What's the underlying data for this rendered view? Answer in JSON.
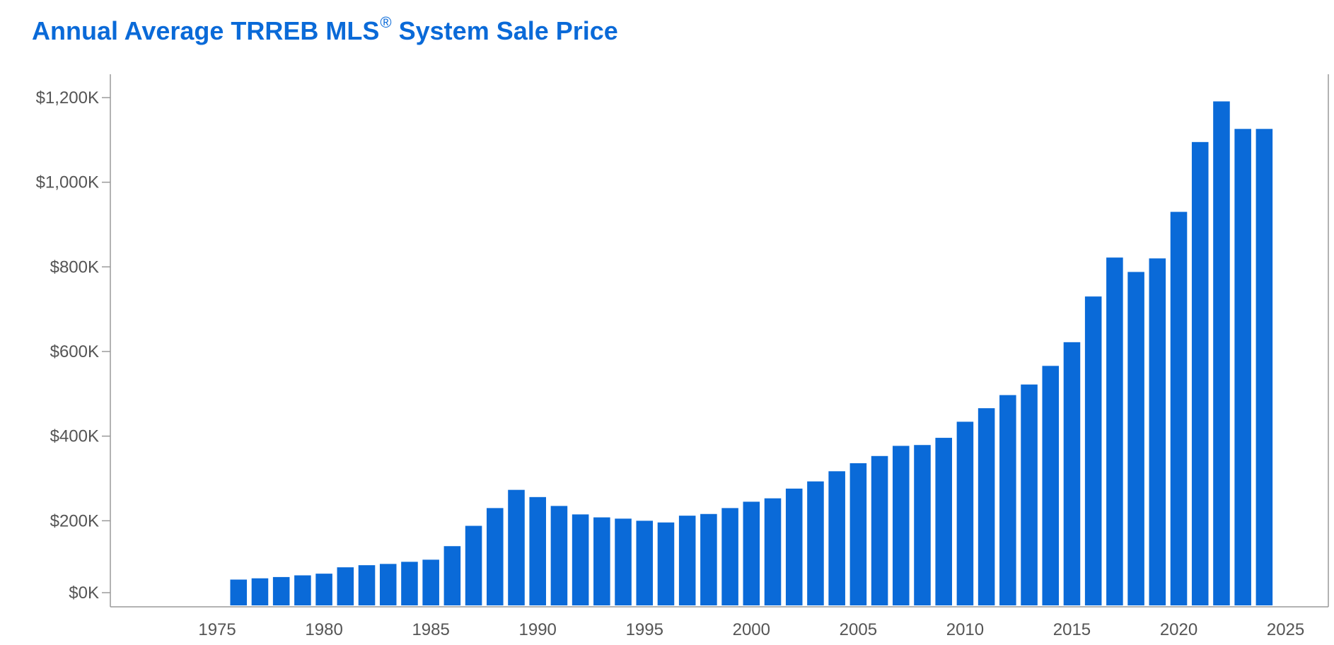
{
  "title": {
    "main": "Annual Average TRREB MLS",
    "sup": "®",
    "rest": " System Sale Price"
  },
  "colors": {
    "bar": "#0a6ad8",
    "title": "#0a6ad8",
    "axis": "#9a9a9a",
    "label": "#555555"
  },
  "chart_data": {
    "type": "bar",
    "title": "Annual Average TRREB MLS® System Sale Price",
    "xlabel": "",
    "ylabel": "",
    "xlim": [
      1970,
      2027
    ],
    "ylim": [
      0,
      1200000
    ],
    "grid": false,
    "legend": "none",
    "x_ticks": [
      1975,
      1980,
      1985,
      1990,
      1995,
      2000,
      2005,
      2010,
      2015,
      2020,
      2025
    ],
    "y_ticks": [
      {
        "value": 0,
        "label": "$0K"
      },
      {
        "value": 200000,
        "label": "$200K"
      },
      {
        "value": 400000,
        "label": "$400K"
      },
      {
        "value": 600000,
        "label": "$600K"
      },
      {
        "value": 800000,
        "label": "$800K"
      },
      {
        "value": 1000000,
        "label": "$1,000K"
      },
      {
        "value": 1200000,
        "label": "$1,200K"
      }
    ],
    "series": [
      {
        "x": [
          1976,
          1977,
          1978,
          1979,
          1980,
          1981,
          1982,
          1983,
          1984,
          1985,
          1986,
          1987,
          1988,
          1989,
          1990,
          1991,
          1992,
          1993,
          1994,
          1995,
          1996,
          1997,
          1998,
          1999,
          2000,
          2001,
          2002,
          2003,
          2004,
          2005,
          2006,
          2007,
          2008,
          2009,
          2010,
          2011,
          2012,
          2013,
          2014,
          2015,
          2016,
          2017,
          2018,
          2019,
          2020,
          2021,
          2022,
          2023,
          2024
        ],
        "values": [
          61000,
          64000,
          67000,
          71000,
          75000,
          90000,
          95000,
          98000,
          103000,
          108000,
          140000,
          188000,
          230000,
          273000,
          256000,
          235000,
          215000,
          208000,
          205000,
          200000,
          196000,
          212000,
          216000,
          230000,
          245000,
          253000,
          276000,
          293000,
          317000,
          336000,
          353000,
          377000,
          379000,
          396000,
          434000,
          466000,
          497000,
          522000,
          566000,
          622000,
          730000,
          822000,
          788000,
          820000,
          930000,
          1095000,
          1191000,
          1126000,
          1126000
        ]
      }
    ]
  }
}
